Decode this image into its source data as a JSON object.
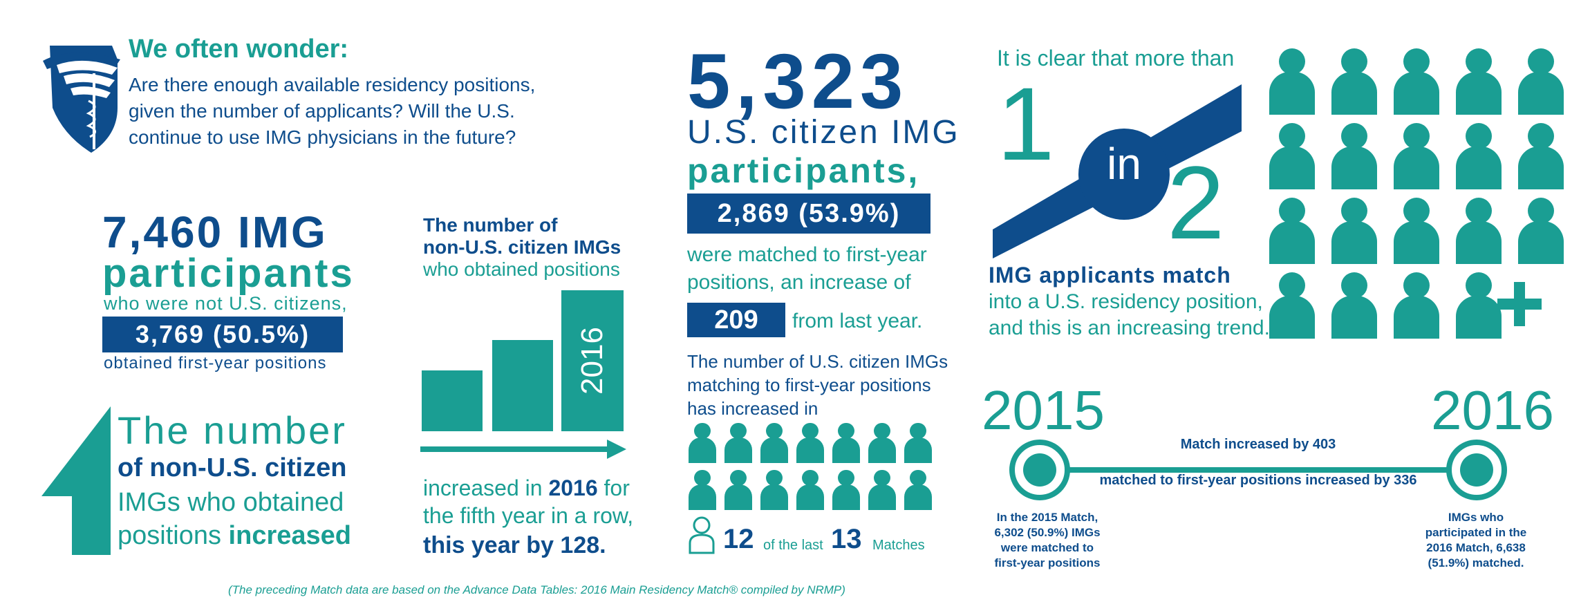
{
  "colors": {
    "teal": "#1a9e93",
    "navy": "#0e4d8c"
  },
  "header": {
    "logo_icon": "winged-shield-caduceus-icon",
    "title": "We often wonder:",
    "question_lines": [
      "Are there enough available residency positions,",
      "given the number of applicants? Will the U.S.",
      "continue to use IMG physicians in the future?"
    ]
  },
  "img_stats": {
    "headline": "7,460 IMG",
    "sub_headline": "participants",
    "line1": "who were not U.S. citizens,",
    "box_value": "3,769 (50.5%)",
    "line2": "obtained first-year positions"
  },
  "trend_block": {
    "arrow_icon": "up-arrow-icon",
    "line1": "The number",
    "line2": "of non-U.S. citizen",
    "line3": "IMGs who obtained",
    "line4_a": "positions ",
    "line4_b": "increased"
  },
  "chart_block": {
    "title_line1": "The number of",
    "title_line2": "non-U.S. citizen IMGs",
    "title_line3": "who obtained positions",
    "bar_year_label": "2016",
    "arrow_icon": "right-arrow-icon",
    "text_line1_a": "increased in ",
    "text_line1_b": "2016",
    "text_line1_c": " for",
    "text_line2": "the fifth year in a row,",
    "text_line3": "this year by 128."
  },
  "us_citizen": {
    "big_number": "5,323",
    "line1": "U.S. citizen IMG",
    "line2": "participants,",
    "box_value": "2,869 (53.9%)",
    "text_line1": "were matched to first-year",
    "text_line2": "positions, an increase of",
    "increase_box": "209",
    "increase_suffix": "from last year.",
    "matching_line1": "The number of U.S. citizen IMGs",
    "matching_line2": "matching to first-year positions",
    "matching_line3": "has increased in",
    "person_icon": "person-icon",
    "outline_person_icon": "person-outline-icon",
    "count_number": "12",
    "count_mid": "of the last",
    "count_total": "13",
    "count_suffix": "Matches"
  },
  "ratio_block": {
    "intro": "It is clear that more than",
    "numerator": "1",
    "connector": "in",
    "denominator": "2",
    "line1": "IMG applicants match",
    "line2": "into a U.S. residency position,",
    "line3": "and this is an increasing trend.",
    "plus_icon": "plus-icon"
  },
  "timeline": {
    "year_start": "2015",
    "year_end": "2016",
    "line_above": "Match increased by 403",
    "line_below": "matched to first-year positions increased by 336",
    "left_note": [
      "In the 2015 Match,",
      "6,302 (50.9%) IMGs",
      "were matched to",
      "first-year positions"
    ],
    "right_note": [
      "IMGs who",
      "participated in the",
      "2016 Match, 6,638",
      "(51.9%) matched."
    ]
  },
  "footer": {
    "source": "(The preceding Match data are based on the Advance Data Tables: 2016 Main Residency Match® compiled by NRMP)"
  }
}
